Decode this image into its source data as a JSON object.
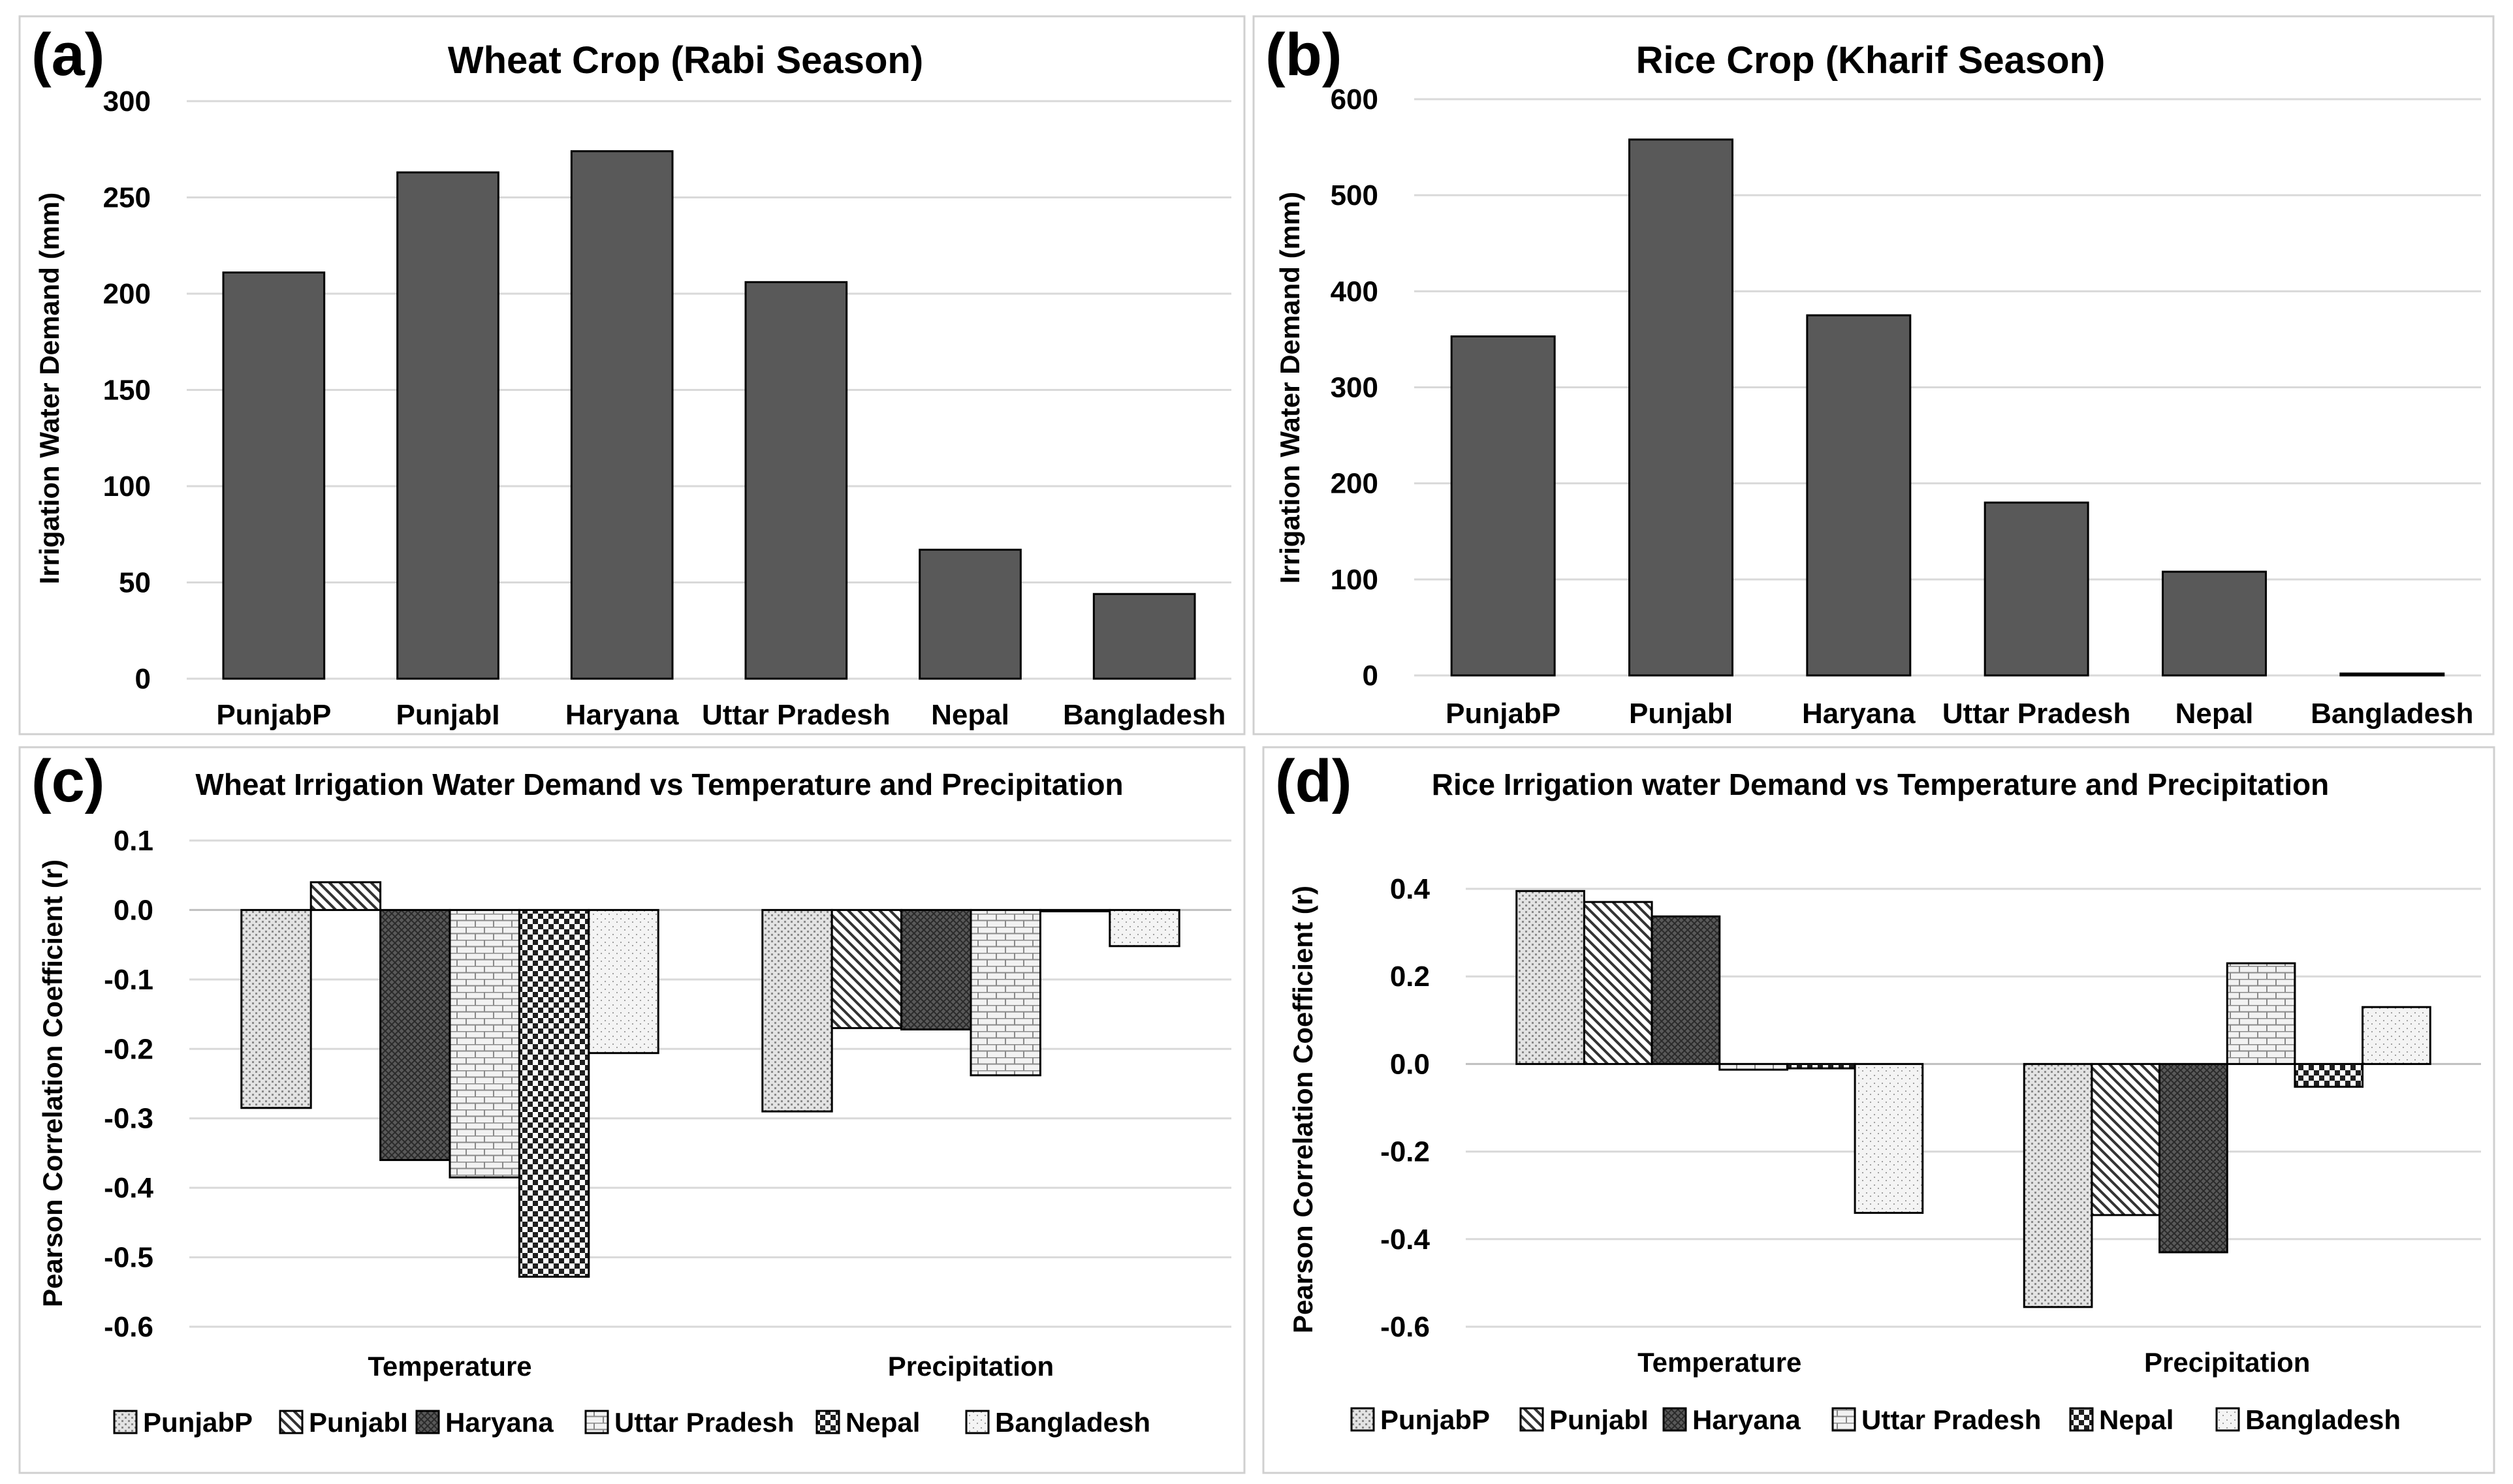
{
  "chart_data": [
    {
      "panel": "(a)",
      "type": "bar",
      "title": "Wheat Crop (Rabi Season)",
      "xlabel": "",
      "ylabel": "Irrigation Water Demand (mm)",
      "ylim": [
        0,
        300
      ],
      "yticks": [
        0,
        50,
        100,
        150,
        200,
        250,
        300
      ],
      "grid": true,
      "categories": [
        "PunjabP",
        "PunjabI",
        "Haryana",
        "Uttar Pradesh",
        "Nepal",
        "Bangladesh"
      ],
      "values": [
        211,
        263,
        274,
        206,
        67,
        44
      ],
      "bar_color": "#595959"
    },
    {
      "panel": "(b)",
      "type": "bar",
      "title": "Rice Crop (Kharif Season)",
      "xlabel": "",
      "ylabel": "Irrigation Water Demand (mm)",
      "ylim": [
        0,
        600
      ],
      "yticks": [
        0,
        100,
        200,
        300,
        400,
        500,
        600
      ],
      "grid": true,
      "categories": [
        "PunjabP",
        "PunjabI",
        "Haryana",
        "Uttar Pradesh",
        "Nepal",
        "Bangladesh"
      ],
      "values": [
        353,
        558,
        375,
        180,
        108,
        2
      ],
      "bar_color": "#595959"
    },
    {
      "panel": "(c)",
      "type": "bar",
      "title": "Wheat Irrigation Water Demand vs Temperature and Precipitation",
      "xlabel": "",
      "ylabel": "Pearson Correlation Coefficient (r)",
      "ylim": [
        -0.6,
        0.1
      ],
      "yticks": [
        0.1,
        0.0,
        -0.1,
        -0.2,
        -0.3,
        -0.4,
        -0.5,
        -0.6
      ],
      "ytick_labels": [
        "0.1",
        "0.0",
        "-0.1",
        "-0.2",
        "-0.3",
        "-0.4",
        "-0.5",
        "-0.6"
      ],
      "grid": true,
      "legend": "bottom",
      "categories": [
        "Temperature",
        "Precipitation"
      ],
      "series": [
        {
          "name": "PunjabP",
          "pattern": "dots",
          "values": [
            -0.285,
            -0.29
          ]
        },
        {
          "name": "PunjabI",
          "pattern": "diag",
          "values": [
            0.04,
            -0.17
          ]
        },
        {
          "name": "Haryana",
          "pattern": "darkcross",
          "values": [
            -0.36,
            -0.172
          ]
        },
        {
          "name": "Uttar Pradesh",
          "pattern": "brick",
          "values": [
            -0.385,
            -0.238
          ]
        },
        {
          "name": "Nepal",
          "pattern": "checker",
          "values": [
            -0.528,
            0.0
          ]
        },
        {
          "name": "Bangladesh",
          "pattern": "sparse",
          "values": [
            -0.206,
            -0.052
          ]
        }
      ]
    },
    {
      "panel": "(d)",
      "type": "bar",
      "title": "Rice Irrigation water Demand vs Temperature and Precipitation",
      "xlabel": "",
      "ylabel": "Pearson Correlation Coefficient (r)",
      "ylim": [
        -0.6,
        0.4
      ],
      "yticks": [
        0.4,
        0.2,
        0.0,
        -0.2,
        -0.4,
        -0.6
      ],
      "ytick_labels": [
        "0.4",
        "0.2",
        "0.0",
        "-0.2",
        "-0.4",
        "-0.6"
      ],
      "grid": true,
      "legend": "bottom",
      "categories": [
        "Temperature",
        "Precipitation"
      ],
      "series": [
        {
          "name": "PunjabP",
          "pattern": "dots",
          "values": [
            0.395,
            -0.555
          ]
        },
        {
          "name": "PunjabI",
          "pattern": "diag",
          "values": [
            0.37,
            -0.345
          ]
        },
        {
          "name": "Haryana",
          "pattern": "darkcross",
          "values": [
            0.337,
            -0.43
          ]
        },
        {
          "name": "Uttar Pradesh",
          "pattern": "brick",
          "values": [
            -0.013,
            0.23
          ]
        },
        {
          "name": "Nepal",
          "pattern": "checker",
          "values": [
            -0.01,
            -0.052
          ]
        },
        {
          "name": "Bangladesh",
          "pattern": "sparse",
          "values": [
            -0.34,
            0.13
          ]
        }
      ]
    }
  ]
}
